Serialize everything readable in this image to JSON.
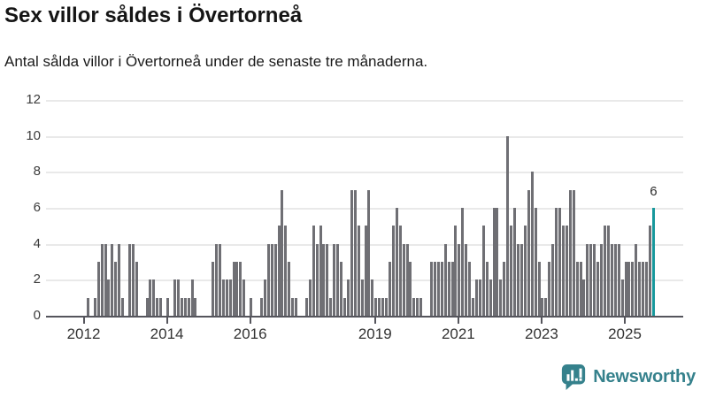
{
  "header": {
    "title": "Sex villor såldes i Övertorneå",
    "subtitle": "Antal sålda villor i Övertorneå under de senaste tre månaderna."
  },
  "chart_data": {
    "type": "bar",
    "title": "Sex villor såldes i Övertorneå",
    "subtitle": "Antal sålda villor i Övertorneå under de senaste tre månaderna.",
    "x_range": {
      "start": "2012-01",
      "end": "2025-09",
      "interval": "month"
    },
    "ylim": [
      0,
      12
    ],
    "grid": true,
    "yticks": [
      0,
      2,
      4,
      6,
      8,
      10,
      12
    ],
    "xticks": [
      {
        "label": "2012",
        "month": 0
      },
      {
        "label": "2014",
        "month": 24
      },
      {
        "label": "2016",
        "month": 48
      },
      {
        "label": "2019",
        "month": 84
      },
      {
        "label": "2021",
        "month": 108
      },
      {
        "label": "2023",
        "month": 132
      },
      {
        "label": "2025",
        "month": 156
      }
    ],
    "values": [
      0,
      1,
      0,
      1,
      3,
      4,
      4,
      2,
      4,
      3,
      4,
      1,
      0,
      4,
      4,
      3,
      0,
      0,
      1,
      2,
      2,
      1,
      1,
      0,
      1,
      0,
      2,
      2,
      1,
      1,
      1,
      2,
      1,
      0,
      0,
      0,
      0,
      3,
      4,
      4,
      2,
      2,
      2,
      3,
      3,
      3,
      2,
      0,
      1,
      0,
      0,
      1,
      2,
      4,
      4,
      4,
      5,
      7,
      5,
      3,
      1,
      1,
      0,
      0,
      1,
      2,
      5,
      4,
      5,
      4,
      4,
      1,
      4,
      4,
      3,
      1,
      2,
      7,
      7,
      5,
      2,
      5,
      7,
      2,
      1,
      1,
      1,
      1,
      3,
      5,
      6,
      5,
      4,
      4,
      3,
      1,
      1,
      1,
      0,
      0,
      3,
      3,
      3,
      3,
      4,
      3,
      3,
      5,
      4,
      6,
      4,
      3,
      1,
      2,
      2,
      5,
      3,
      2,
      6,
      6,
      2,
      3,
      10,
      5,
      6,
      4,
      4,
      5,
      7,
      8,
      6,
      3,
      1,
      1,
      3,
      4,
      6,
      6,
      5,
      5,
      7,
      7,
      3,
      3,
      2,
      4,
      4,
      4,
      3,
      4,
      5,
      5,
      4,
      4,
      4,
      2,
      3,
      3,
      3,
      4,
      3,
      3,
      3,
      5,
      6
    ],
    "highlight": {
      "index": 164,
      "value": 6,
      "label": "6",
      "color": "#17989c"
    },
    "bar_color": "#6f6f74",
    "gridline_color": "#e9e9e9",
    "axis_color": "#55555c",
    "legend": null
  },
  "footer": {
    "brand": "Newsworthy",
    "brand_color": "#35818c"
  }
}
